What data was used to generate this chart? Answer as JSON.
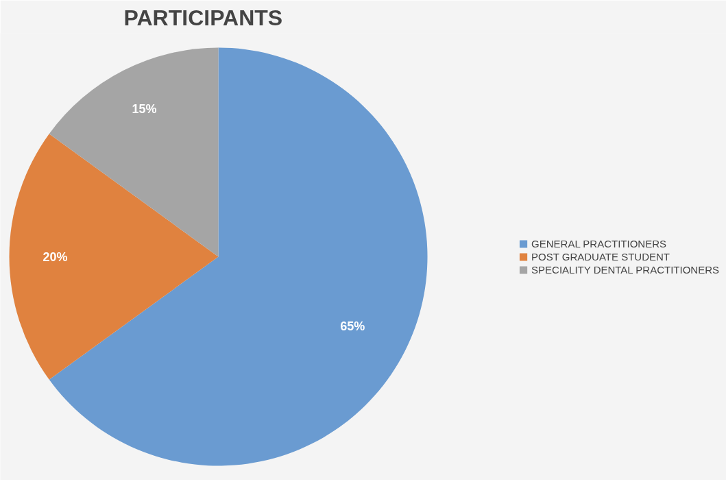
{
  "chart_data": {
    "type": "pie",
    "title": "PARTICIPANTS",
    "categories": [
      "GENERAL PRACTITIONERS",
      "POST GRADUATE STUDENT",
      "SPECIALITY DENTAL PRACTITIONERS"
    ],
    "values": [
      65,
      20,
      15
    ],
    "colors": [
      "#6a9bd1",
      "#e0823f",
      "#a5a5a5"
    ],
    "value_labels": [
      "65%",
      "20%",
      "15%"
    ],
    "legend": "right"
  }
}
